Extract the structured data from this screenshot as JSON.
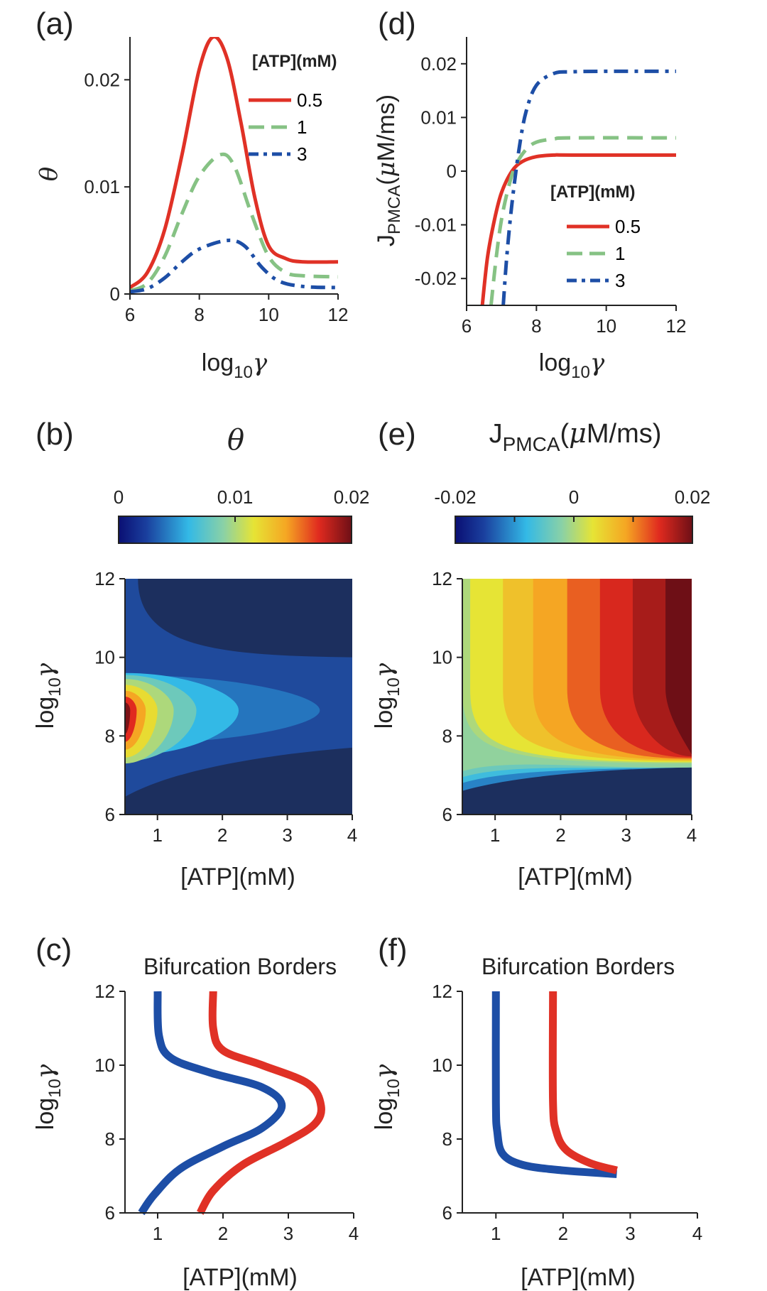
{
  "colors": {
    "red": "#e03126",
    "green": "#86c284",
    "blue": "#1d4ea6",
    "darkblue": "#1c2f5e",
    "axis": "#222222"
  },
  "labels": {
    "a": "(a)",
    "b": "(b)",
    "c": "(c)",
    "d": "(d)",
    "e": "(e)",
    "f": "(f)",
    "log_prefix": "log",
    "log_sub": "10",
    "gamma": "γ",
    "theta": "θ",
    "atp_axis": "[ATP](mM)",
    "j_main": "J",
    "j_sub": "PMCA",
    "j_open": "(",
    "mu": "μ",
    "j_units": "M/ms)",
    "legend_title": "[ATP](mM)",
    "bifurcation": "Bifurcation Borders",
    "colorbar_b_ticks": [
      "0",
      "0.01",
      "0.02"
    ],
    "colorbar_e_ticks": [
      "-0.02",
      "0",
      "0.02"
    ]
  },
  "chart_data": [
    {
      "panel": "a",
      "type": "line",
      "xlim": [
        6,
        12
      ],
      "ylim": [
        0,
        0.024
      ],
      "xticks": [
        "6",
        "8",
        "10",
        "12"
      ],
      "yticks": [
        "0",
        "0.01",
        "0.02"
      ],
      "legend_title": "[ATP](mM)",
      "legend_position": "top-right",
      "series": [
        {
          "name": "0.5",
          "color": "#e03126",
          "dash": "solid",
          "points": [
            [
              6,
              0.0006
            ],
            [
              6.5,
              0.002
            ],
            [
              7,
              0.006
            ],
            [
              7.5,
              0.013
            ],
            [
              8,
              0.021
            ],
            [
              8.4,
              0.024
            ],
            [
              8.8,
              0.022
            ],
            [
              9.2,
              0.016
            ],
            [
              9.6,
              0.009
            ],
            [
              10,
              0.0045
            ],
            [
              10.5,
              0.0033
            ],
            [
              11,
              0.003
            ],
            [
              12,
              0.003
            ]
          ]
        },
        {
          "name": "1",
          "color": "#86c284",
          "dash": "dash",
          "points": [
            [
              6,
              0.0003
            ],
            [
              6.5,
              0.001
            ],
            [
              7,
              0.0035
            ],
            [
              7.5,
              0.0075
            ],
            [
              8,
              0.011
            ],
            [
              8.6,
              0.013
            ],
            [
              9,
              0.012
            ],
            [
              9.5,
              0.0075
            ],
            [
              10,
              0.0035
            ],
            [
              10.5,
              0.002
            ],
            [
              11,
              0.0017
            ],
            [
              12,
              0.0016
            ]
          ]
        },
        {
          "name": "3",
          "color": "#1d4ea6",
          "dash": "dashdot",
          "points": [
            [
              6,
              0.0002
            ],
            [
              6.5,
              0.0005
            ],
            [
              7,
              0.0015
            ],
            [
              7.5,
              0.003
            ],
            [
              8,
              0.0042
            ],
            [
              8.8,
              0.005
            ],
            [
              9.3,
              0.0045
            ],
            [
              9.8,
              0.0025
            ],
            [
              10.3,
              0.0012
            ],
            [
              11,
              0.0007
            ],
            [
              12,
              0.0006
            ]
          ]
        }
      ]
    },
    {
      "panel": "d",
      "type": "line",
      "xlim": [
        6,
        12
      ],
      "ylim": [
        -0.025,
        0.025
      ],
      "xticks": [
        "6",
        "8",
        "10",
        "12"
      ],
      "yticks": [
        "-0.02",
        "-0.01",
        "0",
        "0.01",
        "0.02"
      ],
      "legend_title": "[ATP](mM)",
      "legend_position": "lower-right",
      "series": [
        {
          "name": "0.5",
          "color": "#e03126",
          "dash": "solid",
          "points": [
            [
              6.45,
              -0.025
            ],
            [
              6.6,
              -0.016
            ],
            [
              6.8,
              -0.009
            ],
            [
              7,
              -0.004
            ],
            [
              7.3,
              0
            ],
            [
              7.6,
              0.0018
            ],
            [
              8,
              0.0027
            ],
            [
              8.5,
              0.003
            ],
            [
              9,
              0.003
            ],
            [
              12,
              0.003
            ]
          ]
        },
        {
          "name": "1",
          "color": "#86c284",
          "dash": "dash",
          "points": [
            [
              6.7,
              -0.025
            ],
            [
              6.85,
              -0.016
            ],
            [
              7,
              -0.009
            ],
            [
              7.2,
              -0.003
            ],
            [
              7.4,
              0.001
            ],
            [
              7.7,
              0.004
            ],
            [
              8,
              0.0054
            ],
            [
              8.5,
              0.006
            ],
            [
              9,
              0.0062
            ],
            [
              12,
              0.0062
            ]
          ]
        },
        {
          "name": "3",
          "color": "#1d4ea6",
          "dash": "dashdot",
          "points": [
            [
              7.05,
              -0.025
            ],
            [
              7.15,
              -0.016
            ],
            [
              7.3,
              -0.006
            ],
            [
              7.5,
              0.004
            ],
            [
              7.7,
              0.011
            ],
            [
              8,
              0.016
            ],
            [
              8.5,
              0.0182
            ],
            [
              9,
              0.0185
            ],
            [
              10,
              0.0186
            ],
            [
              12,
              0.0186
            ]
          ]
        }
      ]
    },
    {
      "panel": "b",
      "type": "heatmap",
      "title": "θ",
      "xlabel": "[ATP](mM)",
      "xlim": [
        0.5,
        4
      ],
      "ylim": [
        6,
        12
      ],
      "xticks": [
        "1",
        "2",
        "3",
        "4"
      ],
      "yticks": [
        "6",
        "8",
        "10",
        "12"
      ],
      "colorbar": {
        "min": 0,
        "max": 0.02,
        "ticks": [
          "0",
          "0.01",
          "0.02"
        ]
      },
      "levels": [
        0.001,
        0.0035,
        0.0055,
        0.008,
        0.0105,
        0.013,
        0.0155,
        0.018,
        0.0205,
        0.023
      ]
    },
    {
      "panel": "e",
      "type": "heatmap",
      "title": "J_PMCA (μM/ms)",
      "xlabel": "[ATP](mM)",
      "xlim": [
        0.5,
        4
      ],
      "ylim": [
        6,
        12
      ],
      "xticks": [
        "1",
        "2",
        "3",
        "4"
      ],
      "yticks": [
        "6",
        "8",
        "10",
        "12"
      ],
      "colorbar": {
        "min": -0.02,
        "max": 0.02,
        "ticks": [
          "-0.02",
          "0",
          "0.02"
        ]
      },
      "regions": [
        0,
        0.0045,
        0.0075,
        0.01,
        0.0125,
        0.015,
        0.0175,
        0.02
      ]
    },
    {
      "panel": "c",
      "type": "line",
      "title": "Bifurcation Borders",
      "xlabel": "[ATP](mM)",
      "xlim": [
        0.5,
        4
      ],
      "ylim": [
        6,
        12
      ],
      "xticks": [
        "1",
        "2",
        "3",
        "4"
      ],
      "yticks": [
        "6",
        "8",
        "10",
        "12"
      ],
      "series": [
        {
          "color": "#1d4ea6",
          "points": [
            [
              0.75,
              6
            ],
            [
              0.95,
              6.5
            ],
            [
              1.35,
              7.2
            ],
            [
              2.0,
              7.8
            ],
            [
              2.6,
              8.3
            ],
            [
              2.9,
              8.9
            ],
            [
              2.6,
              9.4
            ],
            [
              1.8,
              9.8
            ],
            [
              1.2,
              10.2
            ],
            [
              1.02,
              10.8
            ],
            [
              1.0,
              12
            ]
          ]
        },
        {
          "color": "#e03126",
          "points": [
            [
              1.65,
              6
            ],
            [
              1.85,
              6.6
            ],
            [
              2.3,
              7.3
            ],
            [
              2.95,
              7.9
            ],
            [
              3.4,
              8.4
            ],
            [
              3.5,
              8.9
            ],
            [
              3.3,
              9.5
            ],
            [
              2.6,
              10.0
            ],
            [
              2.0,
              10.4
            ],
            [
              1.85,
              11
            ],
            [
              1.85,
              12
            ]
          ]
        }
      ]
    },
    {
      "panel": "f",
      "type": "line",
      "title": "Bifurcation Borders",
      "xlabel": "[ATP](mM)",
      "xlim": [
        0.5,
        4
      ],
      "ylim": [
        6,
        12
      ],
      "xticks": [
        "1",
        "2",
        "3",
        "4"
      ],
      "yticks": [
        "6",
        "8",
        "10",
        "12"
      ],
      "series": [
        {
          "color": "#1d4ea6",
          "points": [
            [
              1.0,
              12
            ],
            [
              1.0,
              9
            ],
            [
              1.02,
              8.2
            ],
            [
              1.1,
              7.6
            ],
            [
              1.4,
              7.3
            ],
            [
              2.0,
              7.15
            ],
            [
              2.8,
              7.05
            ]
          ]
        },
        {
          "color": "#e03126",
          "points": [
            [
              1.85,
              12
            ],
            [
              1.85,
              9
            ],
            [
              1.9,
              8.2
            ],
            [
              2.05,
              7.7
            ],
            [
              2.4,
              7.35
            ],
            [
              2.8,
              7.15
            ]
          ]
        }
      ]
    }
  ]
}
